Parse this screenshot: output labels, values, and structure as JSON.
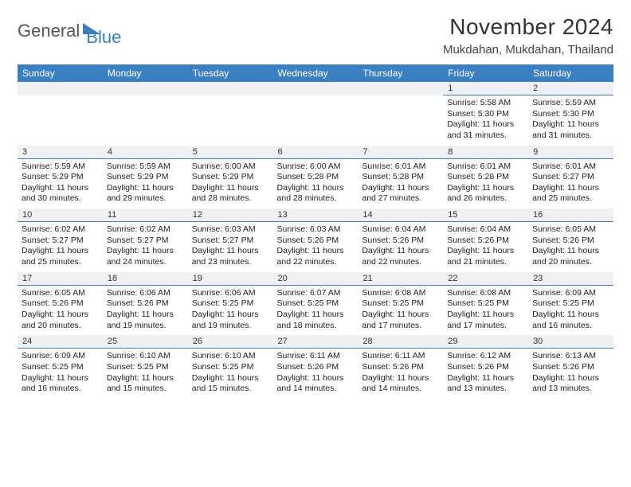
{
  "logo": {
    "text1": "General",
    "text2": "Blue"
  },
  "title": "November 2024",
  "location": "Mukdahan, Mukdahan, Thailand",
  "colors": {
    "header_bg": "#3a7fbf",
    "header_text": "#ffffff",
    "daynum_bg": "#eef0f1",
    "border": "#3a7fbf",
    "text": "#222222"
  },
  "font": {
    "title_size": 28,
    "location_size": 15,
    "header_size": 12,
    "cell_size": 10.5
  },
  "days_of_week": [
    "Sunday",
    "Monday",
    "Tuesday",
    "Wednesday",
    "Thursday",
    "Friday",
    "Saturday"
  ],
  "weeks": [
    [
      null,
      null,
      null,
      null,
      null,
      {
        "n": "1",
        "sr": "Sunrise: 5:58 AM",
        "ss": "Sunset: 5:30 PM",
        "dl": "Daylight: 11 hours and 31 minutes."
      },
      {
        "n": "2",
        "sr": "Sunrise: 5:59 AM",
        "ss": "Sunset: 5:30 PM",
        "dl": "Daylight: 11 hours and 31 minutes."
      }
    ],
    [
      {
        "n": "3",
        "sr": "Sunrise: 5:59 AM",
        "ss": "Sunset: 5:29 PM",
        "dl": "Daylight: 11 hours and 30 minutes."
      },
      {
        "n": "4",
        "sr": "Sunrise: 5:59 AM",
        "ss": "Sunset: 5:29 PM",
        "dl": "Daylight: 11 hours and 29 minutes."
      },
      {
        "n": "5",
        "sr": "Sunrise: 6:00 AM",
        "ss": "Sunset: 5:29 PM",
        "dl": "Daylight: 11 hours and 28 minutes."
      },
      {
        "n": "6",
        "sr": "Sunrise: 6:00 AM",
        "ss": "Sunset: 5:28 PM",
        "dl": "Daylight: 11 hours and 28 minutes."
      },
      {
        "n": "7",
        "sr": "Sunrise: 6:01 AM",
        "ss": "Sunset: 5:28 PM",
        "dl": "Daylight: 11 hours and 27 minutes."
      },
      {
        "n": "8",
        "sr": "Sunrise: 6:01 AM",
        "ss": "Sunset: 5:28 PM",
        "dl": "Daylight: 11 hours and 26 minutes."
      },
      {
        "n": "9",
        "sr": "Sunrise: 6:01 AM",
        "ss": "Sunset: 5:27 PM",
        "dl": "Daylight: 11 hours and 25 minutes."
      }
    ],
    [
      {
        "n": "10",
        "sr": "Sunrise: 6:02 AM",
        "ss": "Sunset: 5:27 PM",
        "dl": "Daylight: 11 hours and 25 minutes."
      },
      {
        "n": "11",
        "sr": "Sunrise: 6:02 AM",
        "ss": "Sunset: 5:27 PM",
        "dl": "Daylight: 11 hours and 24 minutes."
      },
      {
        "n": "12",
        "sr": "Sunrise: 6:03 AM",
        "ss": "Sunset: 5:27 PM",
        "dl": "Daylight: 11 hours and 23 minutes."
      },
      {
        "n": "13",
        "sr": "Sunrise: 6:03 AM",
        "ss": "Sunset: 5:26 PM",
        "dl": "Daylight: 11 hours and 22 minutes."
      },
      {
        "n": "14",
        "sr": "Sunrise: 6:04 AM",
        "ss": "Sunset: 5:26 PM",
        "dl": "Daylight: 11 hours and 22 minutes."
      },
      {
        "n": "15",
        "sr": "Sunrise: 6:04 AM",
        "ss": "Sunset: 5:26 PM",
        "dl": "Daylight: 11 hours and 21 minutes."
      },
      {
        "n": "16",
        "sr": "Sunrise: 6:05 AM",
        "ss": "Sunset: 5:26 PM",
        "dl": "Daylight: 11 hours and 20 minutes."
      }
    ],
    [
      {
        "n": "17",
        "sr": "Sunrise: 6:05 AM",
        "ss": "Sunset: 5:26 PM",
        "dl": "Daylight: 11 hours and 20 minutes."
      },
      {
        "n": "18",
        "sr": "Sunrise: 6:06 AM",
        "ss": "Sunset: 5:26 PM",
        "dl": "Daylight: 11 hours and 19 minutes."
      },
      {
        "n": "19",
        "sr": "Sunrise: 6:06 AM",
        "ss": "Sunset: 5:25 PM",
        "dl": "Daylight: 11 hours and 19 minutes."
      },
      {
        "n": "20",
        "sr": "Sunrise: 6:07 AM",
        "ss": "Sunset: 5:25 PM",
        "dl": "Daylight: 11 hours and 18 minutes."
      },
      {
        "n": "21",
        "sr": "Sunrise: 6:08 AM",
        "ss": "Sunset: 5:25 PM",
        "dl": "Daylight: 11 hours and 17 minutes."
      },
      {
        "n": "22",
        "sr": "Sunrise: 6:08 AM",
        "ss": "Sunset: 5:25 PM",
        "dl": "Daylight: 11 hours and 17 minutes."
      },
      {
        "n": "23",
        "sr": "Sunrise: 6:09 AM",
        "ss": "Sunset: 5:25 PM",
        "dl": "Daylight: 11 hours and 16 minutes."
      }
    ],
    [
      {
        "n": "24",
        "sr": "Sunrise: 6:09 AM",
        "ss": "Sunset: 5:25 PM",
        "dl": "Daylight: 11 hours and 16 minutes."
      },
      {
        "n": "25",
        "sr": "Sunrise: 6:10 AM",
        "ss": "Sunset: 5:25 PM",
        "dl": "Daylight: 11 hours and 15 minutes."
      },
      {
        "n": "26",
        "sr": "Sunrise: 6:10 AM",
        "ss": "Sunset: 5:25 PM",
        "dl": "Daylight: 11 hours and 15 minutes."
      },
      {
        "n": "27",
        "sr": "Sunrise: 6:11 AM",
        "ss": "Sunset: 5:26 PM",
        "dl": "Daylight: 11 hours and 14 minutes."
      },
      {
        "n": "28",
        "sr": "Sunrise: 6:11 AM",
        "ss": "Sunset: 5:26 PM",
        "dl": "Daylight: 11 hours and 14 minutes."
      },
      {
        "n": "29",
        "sr": "Sunrise: 6:12 AM",
        "ss": "Sunset: 5:26 PM",
        "dl": "Daylight: 11 hours and 13 minutes."
      },
      {
        "n": "30",
        "sr": "Sunrise: 6:13 AM",
        "ss": "Sunset: 5:26 PM",
        "dl": "Daylight: 11 hours and 13 minutes."
      }
    ]
  ]
}
